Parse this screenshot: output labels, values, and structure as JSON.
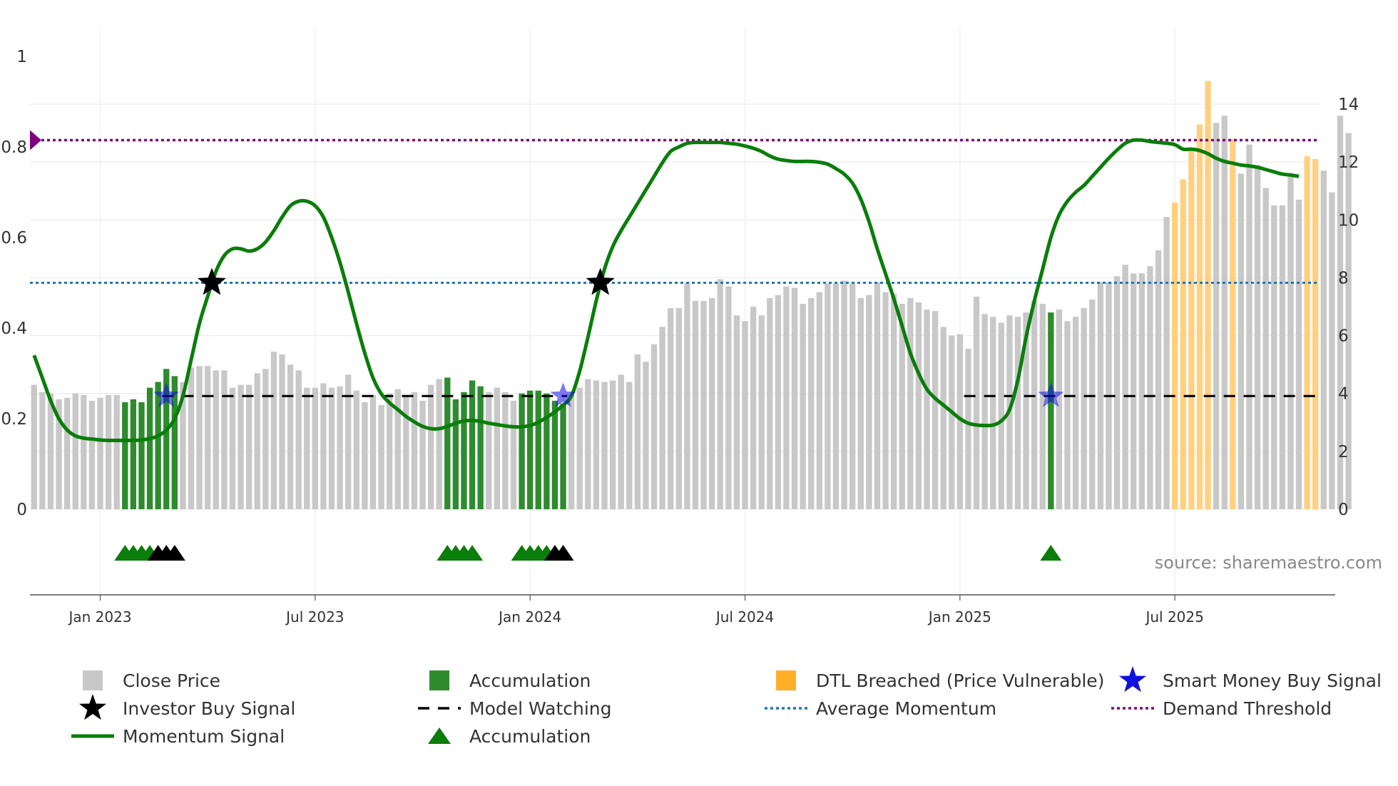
{
  "chart_data": {
    "type": "bar",
    "source_text": "source: sharemaestro.com",
    "x_ticks": [
      "Jan 2023",
      "Jul 2023",
      "Jan 2024",
      "Jul 2024",
      "Jan 2025",
      "Jul 2025"
    ],
    "x_tick_weeks": [
      8,
      34,
      60,
      86,
      112,
      138
    ],
    "y_left": {
      "ticks": [
        "0",
        "0.2",
        "0.4",
        "0.6",
        "0.8",
        "1"
      ],
      "range": [
        0,
        1
      ]
    },
    "y_right": {
      "ticks": [
        "0",
        "2",
        "4",
        "6",
        "8",
        "10",
        "12",
        "14"
      ],
      "range": [
        0,
        14
      ]
    },
    "colors": {
      "close": "#c8c8c8",
      "accumulation": "#2e8b2e",
      "dtl": "#ffd080",
      "momentum": "#0a7d0a",
      "avg": "#1f77b4",
      "demand": "#800080",
      "watch": "#000000",
      "smart": "#1010e0",
      "investor": "#000000"
    },
    "legend": {
      "close": "Close Price",
      "accum_bar": "Accumulation",
      "dtl": "DTL Breached (Price Vulnerable)",
      "smart": "Smart Money Buy Signal",
      "investor": "Investor Buy Signal",
      "watch": "Model Watching",
      "avg": "Average Momentum",
      "demand": "Demand Threshold",
      "momentum": "Momentum Signal",
      "accum_tri": "Accumulation"
    },
    "price_weeks": 156,
    "price_values": [
      4.3,
      4.05,
      4.0,
      3.8,
      3.85,
      4.0,
      3.95,
      3.75,
      3.85,
      3.95,
      3.95,
      3.7,
      3.8,
      3.7,
      4.2,
      4.4,
      4.85,
      4.6,
      4.4,
      4.9,
      4.95,
      4.95,
      4.8,
      4.8,
      4.2,
      4.3,
      4.3,
      4.7,
      4.85,
      5.45,
      5.35,
      5.0,
      4.8,
      4.2,
      4.2,
      4.35,
      4.2,
      4.25,
      4.65,
      4.1,
      3.7,
      3.95,
      3.6,
      4.0,
      4.15,
      3.95,
      4.05,
      3.75,
      4.3,
      4.5,
      4.55,
      3.8,
      4.05,
      4.45,
      4.25,
      4.05,
      4.2,
      4.05,
      3.75,
      4.0,
      4.1,
      4.1,
      4.0,
      3.75,
      3.65,
      3.95,
      4.2,
      4.5,
      4.45,
      4.4,
      4.45,
      4.65,
      4.4,
      5.35,
      5.1,
      5.7,
      6.3,
      6.95,
      6.95,
      7.8,
      7.2,
      7.2,
      7.3,
      7.95,
      7.7,
      6.7,
      6.5,
      7.0,
      6.7,
      7.3,
      7.4,
      7.7,
      7.65,
      7.1,
      7.3,
      7.5,
      7.8,
      7.8,
      7.9,
      7.8,
      7.3,
      7.4,
      7.85,
      7.5,
      7.45,
      7.1,
      7.3,
      7.15,
      6.9,
      6.85,
      6.3,
      6.0,
      6.05,
      5.55,
      7.35,
      6.75,
      6.65,
      6.45,
      6.7,
      6.65,
      6.8,
      7.2,
      7.1,
      6.8,
      6.9,
      6.5,
      6.65,
      6.95,
      7.25,
      7.85,
      7.85,
      8.05,
      8.45,
      8.15,
      8.15,
      8.4,
      8.95,
      10.1,
      10.6,
      11.4,
      12.4,
      13.3,
      14.8,
      13.35,
      13.6,
      12.8,
      11.6,
      12.6,
      11.9,
      11.1,
      10.5,
      10.5,
      11.5,
      10.7,
      12.2,
      12.1,
      11.7,
      10.95,
      13.6,
      13.0
    ],
    "accumulation_weeks": [
      11,
      12,
      13,
      14,
      15,
      16,
      17,
      50,
      51,
      52,
      53,
      54,
      59,
      60,
      61,
      62,
      63,
      64,
      123
    ],
    "dtl_weeks": [
      138,
      139,
      140,
      141,
      142,
      145,
      154,
      155
    ],
    "momentum": [
      0.34,
      0.29,
      0.24,
      0.2,
      0.175,
      0.162,
      0.157,
      0.155,
      0.153,
      0.152,
      0.152,
      0.152,
      0.152,
      0.153,
      0.156,
      0.162,
      0.175,
      0.2,
      0.25,
      0.33,
      0.41,
      0.47,
      0.525,
      0.56,
      0.575,
      0.575,
      0.57,
      0.575,
      0.59,
      0.615,
      0.645,
      0.67,
      0.68,
      0.68,
      0.67,
      0.645,
      0.6,
      0.545,
      0.48,
      0.41,
      0.345,
      0.29,
      0.255,
      0.235,
      0.22,
      0.205,
      0.193,
      0.183,
      0.178,
      0.178,
      0.183,
      0.19,
      0.195,
      0.196,
      0.194,
      0.19,
      0.187,
      0.184,
      0.182,
      0.182,
      0.185,
      0.192,
      0.203,
      0.215,
      0.23,
      0.25,
      0.305,
      0.38,
      0.46,
      0.53,
      0.58,
      0.615,
      0.645,
      0.675,
      0.705,
      0.735,
      0.765,
      0.79,
      0.8,
      0.808,
      0.81,
      0.81,
      0.81,
      0.81,
      0.808,
      0.806,
      0.802,
      0.797,
      0.79,
      0.78,
      0.773,
      0.77,
      0.768,
      0.768,
      0.768,
      0.766,
      0.762,
      0.752,
      0.74,
      0.72,
      0.685,
      0.635,
      0.575,
      0.52,
      0.465,
      0.405,
      0.345,
      0.3,
      0.265,
      0.245,
      0.23,
      0.215,
      0.2,
      0.19,
      0.186,
      0.185,
      0.186,
      0.195,
      0.22,
      0.285,
      0.38,
      0.46,
      0.53,
      0.6,
      0.65,
      0.68,
      0.7,
      0.715,
      0.735,
      0.755,
      0.775,
      0.793,
      0.808,
      0.815,
      0.815,
      0.812,
      0.81,
      0.808,
      0.805,
      0.795,
      0.795,
      0.792,
      0.785,
      0.775,
      0.768,
      0.764,
      0.76,
      0.758,
      0.755,
      0.75,
      0.745,
      0.74,
      0.738,
      0.735
    ],
    "average_momentum": 0.5,
    "demand_threshold": 0.815,
    "model_watching_level": 0.25,
    "model_watching_ranges": [
      [
        15.5,
        64.5
      ],
      [
        112.5,
        155
      ]
    ],
    "smart_money_signals": [
      {
        "week": 16,
        "value": 0.25
      },
      {
        "week": 64,
        "value": 0.25
      },
      {
        "week": 123,
        "value": 0.25
      }
    ],
    "investor_buy_signals": [
      {
        "week": 21.5,
        "value": 0.5
      },
      {
        "week": 68.5,
        "value": 0.5
      }
    ],
    "accumulation_markers_green": [
      11,
      12,
      13,
      14,
      50,
      51,
      52,
      53,
      59,
      60,
      61,
      62,
      123
    ],
    "accumulation_markers_black": [
      15,
      16,
      17,
      63,
      64
    ]
  }
}
